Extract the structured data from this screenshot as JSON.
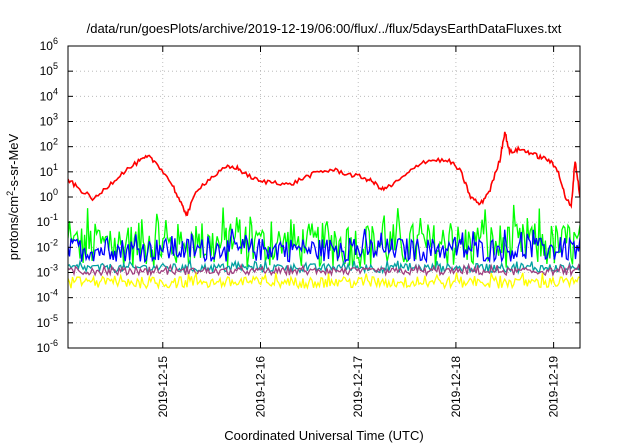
{
  "chart_data": {
    "type": "line",
    "title": "/data/run/goesPlots/archive/2019-12-19/06:00/flux/../flux/5daysEarthDataFluxes.txt",
    "xlabel": "Coordinated Universal Time (UTC)",
    "ylabel_parts": [
      "protons/cm",
      "2",
      "-s-sr-MeV"
    ],
    "x_ticks": [
      "2019-12-15",
      "2019-12-16",
      "2019-12-17",
      "2019-12-18",
      "2019-12-19"
    ],
    "x_range_days": [
      14.03,
      19.27
    ],
    "x_units": "days in December 2019 (day-of-month, fractional)",
    "y_scale": "log",
    "y_tick_exponents": [
      -6,
      -5,
      -4,
      -3,
      -2,
      -1,
      0,
      1,
      2,
      3,
      4,
      5,
      6
    ],
    "ylim": [
      1e-06,
      1000000.0
    ],
    "grid": true,
    "series": [
      {
        "color": "#ff0000",
        "x": [
          14.03,
          14.15,
          14.3,
          14.45,
          14.6,
          14.75,
          14.85,
          14.95,
          15.1,
          15.2,
          15.25,
          15.35,
          15.5,
          15.65,
          15.75,
          15.85,
          16.0,
          16.15,
          16.3,
          16.45,
          16.6,
          16.75,
          16.9,
          17.05,
          17.15,
          17.25,
          17.35,
          17.5,
          17.65,
          17.8,
          17.95,
          18.05,
          18.15,
          18.25,
          18.35,
          18.45,
          18.5,
          18.55,
          18.65,
          18.75,
          18.85,
          18.95,
          19.05,
          19.12,
          19.18,
          19.22,
          19.27
        ],
        "y": [
          5,
          2,
          0.8,
          3,
          10,
          25,
          40,
          20,
          3,
          0.4,
          0.2,
          2,
          6,
          15,
          15,
          8,
          4,
          4,
          3,
          6,
          10,
          12,
          8,
          6,
          4,
          2,
          3,
          8,
          25,
          30,
          25,
          10,
          1,
          0.5,
          2,
          30,
          400,
          60,
          80,
          60,
          40,
          30,
          10,
          1,
          0.4,
          30,
          1
        ]
      },
      {
        "color": "#00ff00",
        "center": 0.012,
        "spread": 8
      },
      {
        "color": "#0000ff",
        "center": 0.008,
        "spread": 3
      },
      {
        "color": "#00a0a0",
        "center": 0.0015,
        "spread": 1.5
      },
      {
        "color": "#a04080",
        "center": 0.0011,
        "spread": 1.4
      },
      {
        "color": "#ffff00",
        "center": 0.0004,
        "spread": 1.7
      }
    ]
  }
}
